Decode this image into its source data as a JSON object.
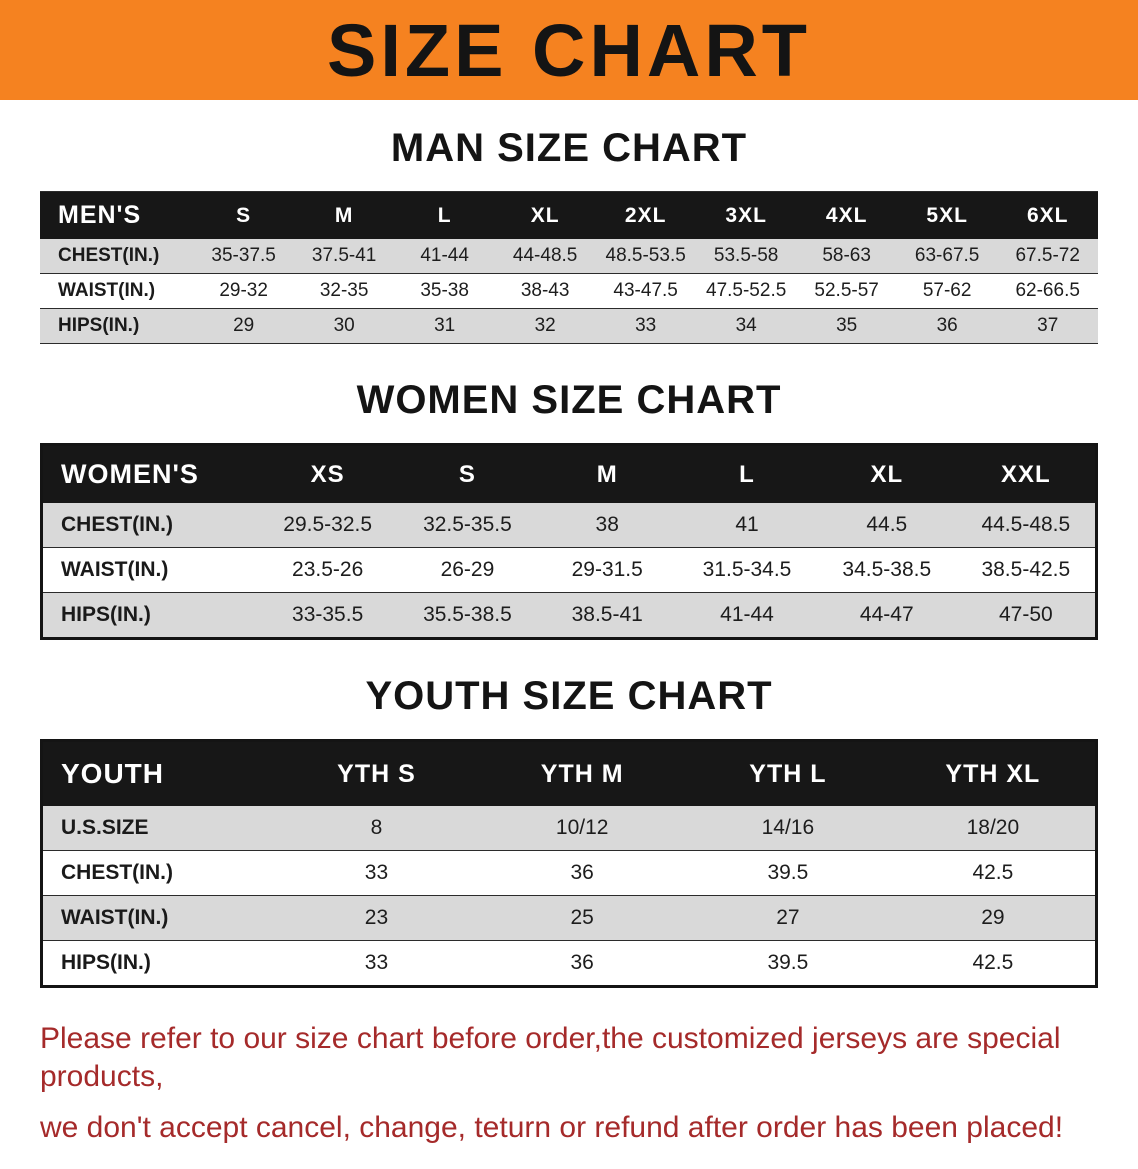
{
  "banner": {
    "title": "SIZE CHART",
    "bg_color": "#F58220",
    "text_color": "#141414"
  },
  "sections": {
    "men": {
      "heading": "MAN SIZE CHART",
      "table": {
        "header": [
          "MEN'S",
          "S",
          "M",
          "L",
          "XL",
          "2XL",
          "3XL",
          "4XL",
          "5XL",
          "6XL"
        ],
        "rows": [
          {
            "label": "CHEST(IN.)",
            "values": [
              "35-37.5",
              "37.5-41",
              "41-44",
              "44-48.5",
              "48.5-53.5",
              "53.5-58",
              "58-63",
              "63-67.5",
              "67.5-72"
            ]
          },
          {
            "label": "WAIST(IN.)",
            "values": [
              "29-32",
              "32-35",
              "35-38",
              "38-43",
              "43-47.5",
              "47.5-52.5",
              "52.5-57",
              "57-62",
              "62-66.5"
            ]
          },
          {
            "label": "HIPS(IN.)",
            "values": [
              "29",
              "30",
              "31",
              "32",
              "33",
              "34",
              "35",
              "36",
              "37"
            ]
          }
        ]
      }
    },
    "women": {
      "heading": "WOMEN SIZE CHART",
      "table": {
        "header": [
          "WOMEN'S",
          "XS",
          "S",
          "M",
          "L",
          "XL",
          "XXL"
        ],
        "rows": [
          {
            "label": "CHEST(IN.)",
            "values": [
              "29.5-32.5",
              "32.5-35.5",
              "38",
              "41",
              "44.5",
              "44.5-48.5"
            ]
          },
          {
            "label": "WAIST(IN.)",
            "values": [
              "23.5-26",
              "26-29",
              "29-31.5",
              "31.5-34.5",
              "34.5-38.5",
              "38.5-42.5"
            ]
          },
          {
            "label": "HIPS(IN.)",
            "values": [
              "33-35.5",
              "35.5-38.5",
              "38.5-41",
              "41-44",
              "44-47",
              "47-50"
            ]
          }
        ]
      }
    },
    "youth": {
      "heading": "YOUTH SIZE CHART",
      "table": {
        "header": [
          "YOUTH",
          "YTH S",
          "YTH M",
          "YTH L",
          "YTH XL"
        ],
        "rows": [
          {
            "label": "U.S.SIZE",
            "values": [
              "8",
              "10/12",
              "14/16",
              "18/20"
            ]
          },
          {
            "label": "CHEST(IN.)",
            "values": [
              "33",
              "36",
              "39.5",
              "42.5"
            ]
          },
          {
            "label": "WAIST(IN.)",
            "values": [
              "23",
              "25",
              "27",
              "29"
            ]
          },
          {
            "label": "HIPS(IN.)",
            "values": [
              "33",
              "36",
              "39.5",
              "42.5"
            ]
          }
        ]
      }
    }
  },
  "footer": {
    "line1": "Please refer to our size chart before order,the customized jerseys are special products,",
    "line2": "we don't accept cancel, change, teturn or refund after order has been placed!",
    "text_color": "#A52A2A"
  }
}
